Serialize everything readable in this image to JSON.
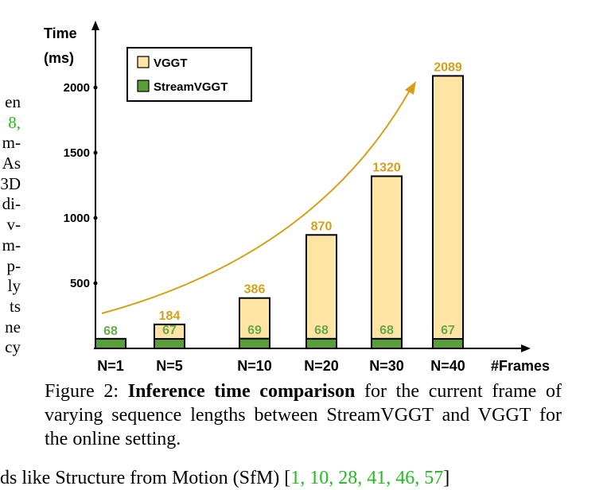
{
  "left_column_fragments": [
    "en",
    "8,",
    "m-",
    "As",
    "3D",
    "di-",
    "v-",
    "m-",
    "p-",
    "ly",
    "ts",
    "ne",
    "cy"
  ],
  "caption": {
    "label": "Figure 2:",
    "bold": "Inference time comparison",
    "rest": " for the current frame of varying sequence lengths between StreamVGGT and VGGT for the online setting."
  },
  "bottom_text": {
    "prefix": "ds like Structure from Motion (SfM) [",
    "citations": "1, 10, 28, 41, 46, 57",
    "suffix": "]"
  },
  "chart_data": {
    "type": "bar",
    "categories": [
      "N=1",
      "N=5",
      "N=10",
      "N=20",
      "N=30",
      "N=40"
    ],
    "xlabel": "#Frames",
    "ylabel_line1": "Time",
    "ylabel_line2": "(ms)",
    "yticks": [
      500,
      1000,
      1500,
      2000
    ],
    "ylim": [
      0,
      2400
    ],
    "series": [
      {
        "name": "VGGT",
        "values": [
          68,
          184,
          386,
          870,
          1320,
          2089
        ],
        "color": "#ffe4a3",
        "label_color": "#d4a017"
      },
      {
        "name": "StreamVGGT",
        "values": [
          68,
          67,
          69,
          68,
          68,
          67
        ],
        "color": "#5a9e3a",
        "label_color": "#6aa84f"
      }
    ],
    "vggt_value_labels": [
      "",
      "184",
      "386",
      "870",
      "1320",
      "2089"
    ],
    "stream_value_labels": [
      "68",
      "67",
      "69",
      "68",
      "68",
      "67"
    ],
    "trend_arrow_color": "#d4a017",
    "legend_position": "top-left",
    "grid": false
  }
}
